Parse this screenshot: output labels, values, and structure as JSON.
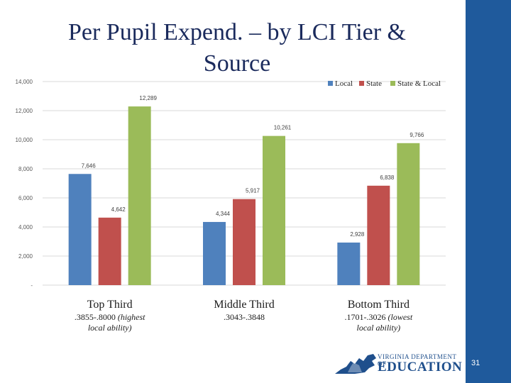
{
  "slide": {
    "title_line1": "Per Pupil Expend. – by LCI Tier &",
    "title_line2": "Source",
    "page_number": "31",
    "logo_top": "VIRGINIA DEPARTMENT OF",
    "logo_main": "EDUCATION",
    "accent_color": "#1f5a9c"
  },
  "chart_data": {
    "type": "bar",
    "categories": [
      "Top Third",
      "Middle Third",
      "Bottom Third"
    ],
    "category_sublabels": [
      [
        ".3855-.8000 (highest",
        "local ability)"
      ],
      [
        ".3043-.3848"
      ],
      [
        ".1701-.3026 (lowest",
        "local ability)"
      ]
    ],
    "series": [
      {
        "name": "Local",
        "values": [
          7646,
          4344,
          2928
        ],
        "value_labels": [
          "7,646",
          "4,344",
          "2,928"
        ],
        "color": "#4f81bd"
      },
      {
        "name": "State",
        "values": [
          4642,
          5917,
          6838
        ],
        "value_labels": [
          "4,642",
          "5,917",
          "6,838"
        ],
        "color": "#c0504d"
      },
      {
        "name": "State & Local",
        "values": [
          12289,
          10261,
          9766
        ],
        "value_labels": [
          "12,289",
          "10,261",
          "9,766"
        ],
        "color": "#9bbb59"
      }
    ],
    "y_ticks": [
      0,
      2000,
      4000,
      6000,
      8000,
      10000,
      12000,
      14000
    ],
    "y_tick_labels": [
      "-",
      "2,000",
      "4,000",
      "6,000",
      "8,000",
      "10,000",
      "12,000",
      "14,000"
    ],
    "ylim": [
      0,
      14000
    ],
    "grid": true,
    "legend_position": "top-right"
  }
}
